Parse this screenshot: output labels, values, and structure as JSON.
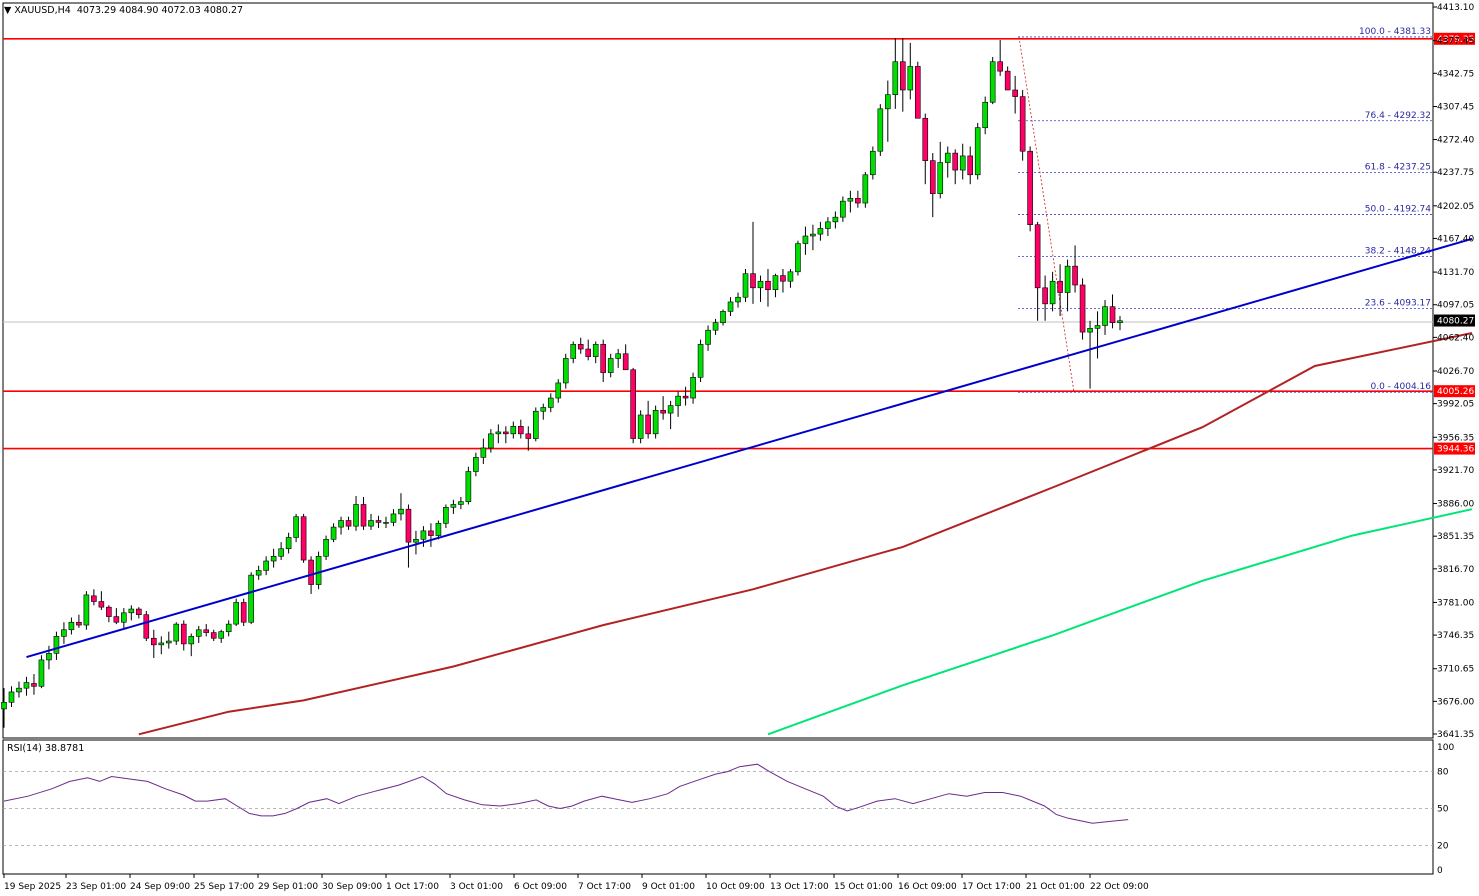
{
  "header": {
    "symbol": "XAUUSD,H4",
    "ohlc": "4073.29 4084.90 4072.03 4080.27"
  },
  "chart_data": {
    "type": "candlestick",
    "ylim": [
      3641.35,
      4413.1
    ],
    "y_ticks": [
      4413.1,
      4377.45,
      4342.75,
      4307.45,
      4272.4,
      4237.75,
      4202.05,
      4167.4,
      4131.7,
      4097.05,
      4062.4,
      4026.7,
      3992.05,
      3956.35,
      3921.7,
      3886.0,
      3851.35,
      3816.7,
      3781.0,
      3746.35,
      3710.65,
      3676.0,
      3641.35
    ],
    "x_ticks": [
      "19 Sep 2025",
      "23 Sep 01:00",
      "24 Sep 09:00",
      "25 Sep 17:00",
      "29 Sep 01:00",
      "30 Sep 09:00",
      "1 Oct 17:00",
      "3 Oct 01:00",
      "6 Oct 09:00",
      "7 Oct 17:00",
      "9 Oct 01:00",
      "10 Oct 09:00",
      "13 Oct 17:00",
      "15 Oct 01:00",
      "16 Oct 09:00",
      "17 Oct 17:00",
      "21 Oct 01:00",
      "22 Oct 09:00"
    ],
    "current_price": "4080.27",
    "colors": {
      "bull": "#00dd00",
      "bear": "#ff0066",
      "hline": "#ff0000",
      "trend": "#0000cc",
      "ma_short": "#b22222",
      "ma_long": "#00e676",
      "rsi": "#6a2b8a",
      "fib": "#3a3ad0"
    },
    "horizontal_levels": [
      {
        "price": 4379.35,
        "label": "4379.35"
      },
      {
        "price": 4005.26,
        "label": "4005.26"
      },
      {
        "price": 3944.36,
        "label": "3944.36"
      }
    ],
    "fibonacci": [
      {
        "label": "100.0 - 4381.33",
        "price": 4381.33
      },
      {
        "label": "76.4 - 4292.32",
        "price": 4292.32
      },
      {
        "label": "61.8 - 4237.25",
        "price": 4237.25
      },
      {
        "label": "50.0 - 4192.74",
        "price": 4192.74
      },
      {
        "label": "38.2 - 4148.24",
        "price": 4148.24
      },
      {
        "label": "23.6 - 4093.17",
        "price": 4093.17
      },
      {
        "label": "0.0 - 4004.16",
        "price": 4004.16
      }
    ],
    "trendline": {
      "start": [
        3,
        3723
      ],
      "end": [
        196,
        4167
      ]
    },
    "ma_short": [
      [
        18,
        3641
      ],
      [
        30,
        3665
      ],
      [
        40,
        3677
      ],
      [
        60,
        3713
      ],
      [
        80,
        3757
      ],
      [
        100,
        3795
      ],
      [
        120,
        3840
      ],
      [
        140,
        3903
      ],
      [
        160,
        3967
      ],
      [
        175,
        4032
      ],
      [
        196,
        4067
      ]
    ],
    "ma_long": [
      [
        102,
        3641
      ],
      [
        120,
        3693
      ],
      [
        140,
        3746
      ],
      [
        160,
        3804
      ],
      [
        180,
        3852
      ],
      [
        196,
        3880
      ]
    ],
    "candles": [
      [
        3668,
        3690,
        3648,
        3675
      ],
      [
        3675,
        3692,
        3670,
        3686
      ],
      [
        3686,
        3697,
        3680,
        3690
      ],
      [
        3690,
        3702,
        3682,
        3696
      ],
      [
        3695,
        3705,
        3683,
        3692
      ],
      [
        3692,
        3725,
        3690,
        3720
      ],
      [
        3720,
        3735,
        3710,
        3727
      ],
      [
        3727,
        3750,
        3720,
        3745
      ],
      [
        3745,
        3760,
        3737,
        3752
      ],
      [
        3752,
        3765,
        3747,
        3760
      ],
      [
        3760,
        3768,
        3754,
        3757
      ],
      [
        3757,
        3793,
        3752,
        3789
      ],
      [
        3788,
        3795,
        3778,
        3782
      ],
      [
        3782,
        3793,
        3773,
        3776
      ],
      [
        3776,
        3778,
        3760,
        3766
      ],
      [
        3766,
        3775,
        3758,
        3760
      ],
      [
        3760,
        3775,
        3752,
        3770
      ],
      [
        3770,
        3778,
        3762,
        3774
      ],
      [
        3774,
        3776,
        3764,
        3768
      ],
      [
        3768,
        3772,
        3740,
        3743
      ],
      [
        3743,
        3752,
        3722,
        3736
      ],
      [
        3736,
        3745,
        3726,
        3738
      ],
      [
        3738,
        3750,
        3732,
        3740
      ],
      [
        3740,
        3760,
        3736,
        3758
      ],
      [
        3758,
        3762,
        3730,
        3737
      ],
      [
        3737,
        3748,
        3724,
        3745
      ],
      [
        3745,
        3756,
        3738,
        3752
      ],
      [
        3752,
        3758,
        3745,
        3749
      ],
      [
        3749,
        3752,
        3740,
        3743
      ],
      [
        3743,
        3752,
        3738,
        3750
      ],
      [
        3750,
        3762,
        3745,
        3758
      ],
      [
        3758,
        3785,
        3756,
        3781
      ],
      [
        3781,
        3785,
        3756,
        3760
      ],
      [
        3760,
        3813,
        3758,
        3810
      ],
      [
        3810,
        3820,
        3805,
        3815
      ],
      [
        3815,
        3830,
        3810,
        3825
      ],
      [
        3825,
        3838,
        3818,
        3830
      ],
      [
        3830,
        3845,
        3826,
        3838
      ],
      [
        3838,
        3855,
        3833,
        3850
      ],
      [
        3850,
        3875,
        3845,
        3872
      ],
      [
        3872,
        3875,
        3823,
        3826
      ],
      [
        3826,
        3830,
        3790,
        3800
      ],
      [
        3800,
        3835,
        3795,
        3830
      ],
      [
        3830,
        3852,
        3826,
        3848
      ],
      [
        3848,
        3865,
        3845,
        3861
      ],
      [
        3861,
        3872,
        3853,
        3868
      ],
      [
        3868,
        3872,
        3858,
        3862
      ],
      [
        3862,
        3894,
        3857,
        3885
      ],
      [
        3885,
        3893,
        3858,
        3862
      ],
      [
        3862,
        3875,
        3858,
        3868
      ],
      [
        3868,
        3873,
        3860,
        3866
      ],
      [
        3866,
        3872,
        3860,
        3866
      ],
      [
        3866,
        3880,
        3862,
        3875
      ],
      [
        3875,
        3897,
        3868,
        3880
      ],
      [
        3880,
        3885,
        3818,
        3845
      ],
      [
        3845,
        3857,
        3832,
        3848
      ],
      [
        3848,
        3862,
        3840,
        3857
      ],
      [
        3857,
        3865,
        3840,
        3852
      ],
      [
        3852,
        3868,
        3848,
        3865
      ],
      [
        3865,
        3885,
        3860,
        3882
      ],
      [
        3882,
        3890,
        3875,
        3885
      ],
      [
        3885,
        3893,
        3880,
        3888
      ],
      [
        3888,
        3925,
        3885,
        3920
      ],
      [
        3920,
        3940,
        3915,
        3935
      ],
      [
        3935,
        3955,
        3928,
        3945
      ],
      [
        3945,
        3965,
        3940,
        3960
      ],
      [
        3960,
        3970,
        3950,
        3962
      ],
      [
        3962,
        3968,
        3950,
        3960
      ],
      [
        3960,
        3973,
        3955,
        3968
      ],
      [
        3968,
        3975,
        3955,
        3960
      ],
      [
        3960,
        3968,
        3942,
        3955
      ],
      [
        3955,
        3988,
        3952,
        3984
      ],
      [
        3984,
        3992,
        3975,
        3988
      ],
      [
        3988,
        4003,
        3983,
        3998
      ],
      [
        3998,
        4018,
        3993,
        4014
      ],
      [
        4014,
        4045,
        4008,
        4040
      ],
      [
        4040,
        4058,
        4035,
        4055
      ],
      [
        4055,
        4062,
        4045,
        4050
      ],
      [
        4050,
        4060,
        4038,
        4042
      ],
      [
        4042,
        4058,
        4035,
        4055
      ],
      [
        4055,
        4060,
        4015,
        4025
      ],
      [
        4025,
        4045,
        4020,
        4040
      ],
      [
        4040,
        4050,
        4030,
        4045
      ],
      [
        4045,
        4055,
        4030,
        4028
      ],
      [
        4028,
        4030,
        3950,
        3955
      ],
      [
        3955,
        3985,
        3950,
        3980
      ],
      [
        3980,
        3995,
        3955,
        3960
      ],
      [
        3960,
        3990,
        3955,
        3985
      ],
      [
        3985,
        4000,
        3975,
        3982
      ],
      [
        3982,
        3995,
        3965,
        3990
      ],
      [
        3990,
        4005,
        3978,
        4000
      ],
      [
        4000,
        4010,
        3990,
        3998
      ],
      [
        3998,
        4025,
        3992,
        4020
      ],
      [
        4020,
        4060,
        4015,
        4055
      ],
      [
        4055,
        4075,
        4048,
        4070
      ],
      [
        4070,
        4082,
        4065,
        4078
      ],
      [
        4078,
        4092,
        4075,
        4090
      ],
      [
        4090,
        4105,
        4085,
        4100
      ],
      [
        4100,
        4110,
        4094,
        4105
      ],
      [
        4105,
        4135,
        4100,
        4130
      ],
      [
        4130,
        4185,
        4098,
        4115
      ],
      [
        4115,
        4128,
        4100,
        4122
      ],
      [
        4122,
        4135,
        4095,
        4113
      ],
      [
        4113,
        4130,
        4105,
        4128
      ],
      [
        4128,
        4135,
        4110,
        4122
      ],
      [
        4122,
        4135,
        4115,
        4132
      ],
      [
        4132,
        4165,
        4128,
        4162
      ],
      [
        4162,
        4180,
        4150,
        4170
      ],
      [
        4170,
        4182,
        4155,
        4172
      ],
      [
        4172,
        4185,
        4165,
        4178
      ],
      [
        4178,
        4190,
        4170,
        4185
      ],
      [
        4185,
        4196,
        4178,
        4190
      ],
      [
        4190,
        4212,
        4185,
        4207
      ],
      [
        4207,
        4218,
        4195,
        4210
      ],
      [
        4210,
        4218,
        4200,
        4205
      ],
      [
        4205,
        4238,
        4200,
        4235
      ],
      [
        4235,
        4265,
        4230,
        4260
      ],
      [
        4260,
        4310,
        4255,
        4305
      ],
      [
        4305,
        4335,
        4270,
        4320
      ],
      [
        4320,
        4380,
        4305,
        4355
      ],
      [
        4355,
        4380,
        4302,
        4325
      ],
      [
        4325,
        4375,
        4315,
        4350
      ],
      [
        4350,
        4355,
        4300,
        4295
      ],
      [
        4295,
        4300,
        4225,
        4250
      ],
      [
        4250,
        4258,
        4190,
        4215
      ],
      [
        4215,
        4270,
        4210,
        4248
      ],
      [
        4248,
        4265,
        4232,
        4258
      ],
      [
        4258,
        4262,
        4225,
        4240
      ],
      [
        4240,
        4268,
        4230,
        4255
      ],
      [
        4255,
        4265,
        4225,
        4235
      ],
      [
        4235,
        4290,
        4230,
        4285
      ],
      [
        4285,
        4318,
        4278,
        4312
      ],
      [
        4312,
        4360,
        4310,
        4355
      ],
      [
        4355,
        4378,
        4340,
        4345
      ],
      [
        4345,
        4350,
        4325,
        4325
      ],
      [
        4325,
        4340,
        4300,
        4318
      ],
      [
        4318,
        4325,
        4250,
        4260
      ],
      [
        4260,
        4265,
        4175,
        4182
      ],
      [
        4182,
        4185,
        4080,
        4115
      ],
      [
        4115,
        4128,
        4080,
        4098
      ],
      [
        4098,
        4132,
        4090,
        4122
      ],
      [
        4122,
        4140,
        4085,
        4110
      ],
      [
        4110,
        4145,
        4090,
        4138
      ],
      [
        4138,
        4160,
        4110,
        4118
      ],
      [
        4118,
        4125,
        4060,
        4068
      ],
      [
        4068,
        4080,
        4008,
        4072
      ],
      [
        4072,
        4090,
        4040,
        4075
      ],
      [
        4075,
        4102,
        4065,
        4095
      ],
      [
        4095,
        4108,
        4072,
        4078
      ],
      [
        4078,
        4085,
        4070,
        4080
      ]
    ]
  },
  "rsi": {
    "label": "RSI(14) 38.8781",
    "ticks": [
      "100",
      "80",
      "50",
      "20",
      "0"
    ]
  }
}
